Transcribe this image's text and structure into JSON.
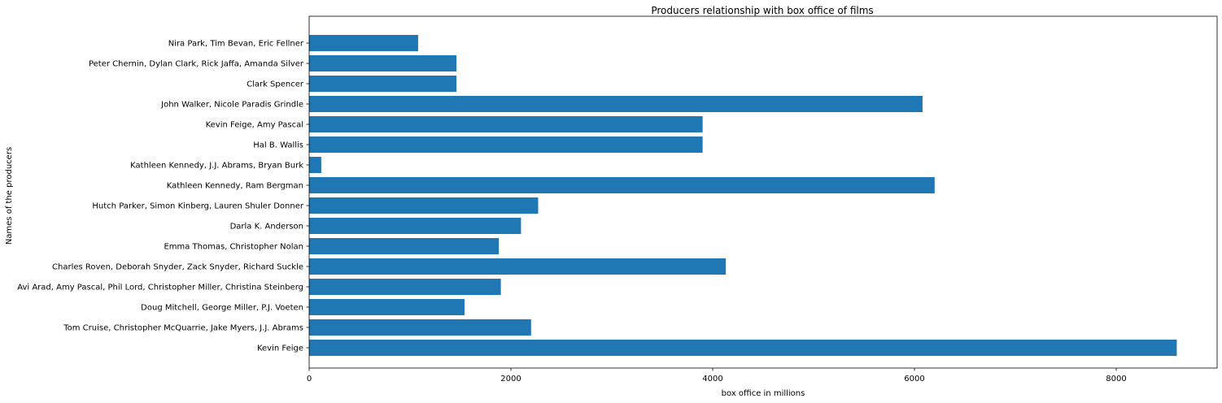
{
  "chart_data": {
    "type": "bar",
    "orientation": "horizontal",
    "title": "Producers relationship with box office of films",
    "xlabel": "box office in millions",
    "ylabel": "Names of the producers",
    "xlim": [
      0,
      9000
    ],
    "xticks": [
      0,
      2000,
      4000,
      6000,
      8000
    ],
    "grid": false,
    "bar_color": "#1f77b4",
    "categories": [
      "Kevin Feige",
      "Tom Cruise, Christopher McQuarrie, Jake Myers, J.J. Abrams",
      "Doug Mitchell, George Miller, P.J. Voeten",
      "Avi Arad, Amy Pascal, Phil Lord, Christopher Miller, Christina Steinberg",
      "Charles Roven, Deborah Snyder, Zack Snyder, Richard Suckle",
      "Emma Thomas, Christopher Nolan",
      "Darla K. Anderson",
      "Hutch Parker, Simon Kinberg, Lauren Shuler Donner",
      "Kathleen Kennedy, Ram Bergman",
      "Kathleen Kennedy, J.J. Abrams, Bryan Burk",
      "Hal B. Wallis",
      "Kevin Feige, Amy Pascal",
      "John Walker, Nicole Paradis Grindle",
      "Clark Spencer",
      "Peter Chernin, Dylan Clark, Rick Jaffa, Amanda Silver",
      "Nira Park, Tim Bevan, Eric Fellner"
    ],
    "values": [
      8600,
      2200,
      1540,
      1900,
      4130,
      1880,
      2100,
      2270,
      6200,
      120,
      3900,
      3900,
      6080,
      1460,
      1460,
      1080
    ]
  }
}
